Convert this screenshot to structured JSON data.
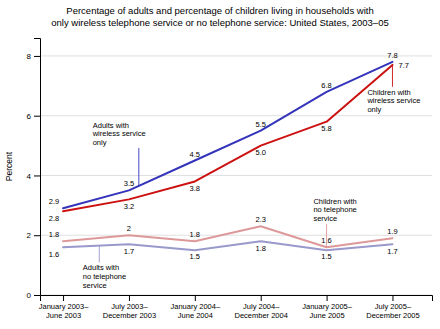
{
  "chart_data": {
    "type": "line",
    "title": "Percentage of adults and percentage of children living in households with\nonly wireless telephone service or no telephone service: United States, 2003–05",
    "ylabel": "Percent",
    "categories": [
      "January 2003–\nJune 2003",
      "July 2003–\nDecember 2003",
      "January 2004–\nJune 2004",
      "July 2004–\nDecember 2004",
      "January 2005–\nJune 2005",
      "July 2005–\nDecember 2005"
    ],
    "series": [
      {
        "name": "Adults with\nwireless service\nonly",
        "color": "#3333bb",
        "values": [
          2.9,
          3.5,
          4.5,
          5.5,
          6.8,
          7.8
        ]
      },
      {
        "name": "Children with\nwireless service\nonly",
        "color": "#cc1111",
        "values": [
          2.8,
          3.2,
          3.8,
          5.0,
          5.8,
          7.7
        ],
        "value_labels": [
          "2.8",
          "3.2",
          "3.8",
          "5.0",
          "5.8",
          "7.7"
        ]
      },
      {
        "name": "Adults with\nno telephone\nservice",
        "color": "#9999cc",
        "values": [
          1.6,
          1.7,
          1.5,
          1.8,
          1.5,
          1.7
        ]
      },
      {
        "name": "Children with\nno telephone\nservice",
        "color": "#dd9999",
        "values": [
          1.8,
          2.0,
          1.8,
          2.3,
          1.6,
          1.9
        ]
      }
    ],
    "ylim": [
      0,
      8.6
    ],
    "yticks": [
      0,
      2,
      4,
      6,
      8
    ],
    "grid": true,
    "data_labels": true
  }
}
